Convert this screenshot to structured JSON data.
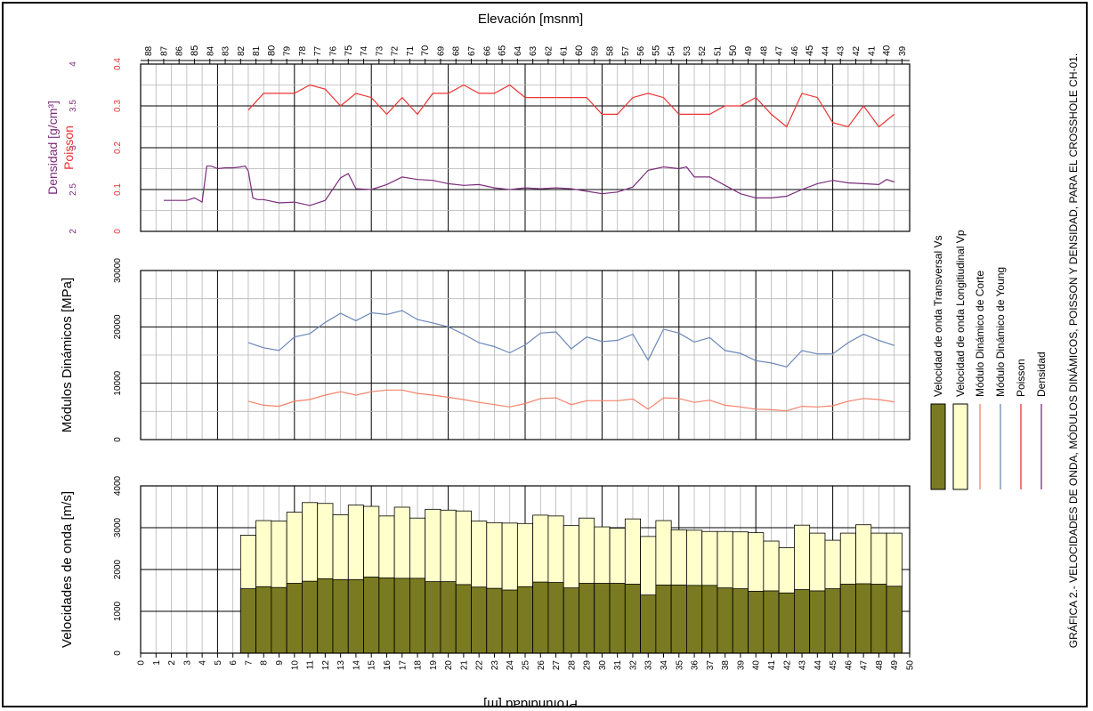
{
  "title_top": "Elevación [msnm]",
  "xlabel_bottom": "Profundidad [m]",
  "caption": "GRÁFICA 2.- VELOCIDADES DE ONDA, MÓDULOS DINÁMICOS, POISSON Y DENSIDAD, PARA EL CROSSHOLE CH-01.",
  "colors": {
    "vs_fill": "#7a7a22",
    "vp_fill": "#ffffcc",
    "corte": "#f4826a",
    "young": "#6b87b8",
    "poisson": "#ee3333",
    "densidad": "#7b2d7b",
    "density_axis": "#7b2d7b",
    "poisson_axis": "#ee3333"
  },
  "legend": {
    "vs": "Velocidad de onda Transversal Vs",
    "vp": "Velocidad de onda Longitiudinal Vp",
    "corte": "Módulo Dinámico de Corte",
    "young": "Módulo Dinámico de Young",
    "poisson": "Poisson",
    "densidad": "Densidad"
  },
  "chart_data": [
    {
      "type": "line",
      "panel": "poisson_density",
      "ylabel_density": "Densidad [g/cm³]",
      "ylabel_poisson": "Poisson",
      "density_ticks": [
        "2",
        "2.5",
        "3",
        "3.5",
        "4"
      ],
      "poisson_ticks": [
        "0",
        "0.1",
        "0.2",
        "0.3",
        "0.4"
      ],
      "ylim_density": [
        2,
        4
      ],
      "ylim_poisson": [
        0,
        0.4
      ],
      "xlim": [
        0,
        50
      ],
      "elevation_ticks": [
        "88",
        "87",
        "86",
        "85",
        "84",
        "83",
        "82",
        "81",
        "80",
        "79",
        "78",
        "77",
        "76",
        "75",
        "74",
        "73",
        "72",
        "71",
        "70",
        "69",
        "68",
        "67",
        "66",
        "65",
        "64",
        "63",
        "62",
        "61",
        "60",
        "59",
        "58",
        "57",
        "56",
        "55",
        "54",
        "53",
        "52",
        "51",
        "50",
        "49",
        "48",
        "47",
        "46",
        "45",
        "44",
        "43",
        "42",
        "41",
        "40",
        "39"
      ],
      "series": [
        {
          "name": "Poisson",
          "x": [
            7,
            8,
            9,
            10,
            11,
            12,
            13,
            14,
            15,
            16,
            17,
            18,
            19,
            20,
            21,
            22,
            23,
            24,
            25,
            26,
            27,
            28,
            29,
            30,
            31,
            32,
            33,
            34,
            35,
            36,
            37,
            38,
            39,
            40,
            41,
            42,
            43,
            44,
            45,
            46,
            47,
            48,
            49
          ],
          "values": [
            0.29,
            0.33,
            0.33,
            0.33,
            0.35,
            0.34,
            0.3,
            0.33,
            0.32,
            0.28,
            0.32,
            0.28,
            0.33,
            0.33,
            0.35,
            0.33,
            0.33,
            0.35,
            0.32,
            0.32,
            0.32,
            0.32,
            0.32,
            0.28,
            0.28,
            0.32,
            0.33,
            0.32,
            0.28,
            0.28,
            0.28,
            0.3,
            0.3,
            0.32,
            0.28,
            0.25,
            0.33,
            0.32,
            0.26,
            0.25,
            0.3,
            0.25,
            0.28
          ]
        },
        {
          "name": "Densidad",
          "x": [
            1.5,
            2,
            3,
            3.5,
            4,
            4.3,
            4.6,
            5,
            5.5,
            6,
            6.5,
            6.8,
            7,
            7.3,
            7.6,
            8,
            9,
            10,
            11,
            12,
            13,
            13.5,
            14,
            15,
            16,
            17,
            18,
            19,
            20,
            21,
            22,
            23,
            24,
            25,
            26,
            27,
            28,
            29,
            30,
            31,
            32,
            33,
            33.5,
            34,
            35,
            35.5,
            36,
            37,
            38,
            39,
            40,
            41,
            42,
            43,
            44,
            45,
            46,
            47,
            48,
            48.5,
            49
          ],
          "values": [
            2.37,
            2.37,
            2.37,
            2.4,
            2.35,
            2.78,
            2.78,
            2.75,
            2.76,
            2.76,
            2.77,
            2.78,
            2.72,
            2.4,
            2.38,
            2.38,
            2.34,
            2.35,
            2.31,
            2.37,
            2.64,
            2.69,
            2.51,
            2.5,
            2.56,
            2.65,
            2.62,
            2.61,
            2.57,
            2.55,
            2.56,
            2.52,
            2.5,
            2.52,
            2.51,
            2.52,
            2.51,
            2.48,
            2.45,
            2.47,
            2.53,
            2.73,
            2.75,
            2.77,
            2.75,
            2.77,
            2.65,
            2.65,
            2.55,
            2.45,
            2.4,
            2.4,
            2.42,
            2.5,
            2.57,
            2.61,
            2.58,
            2.57,
            2.56,
            2.62,
            2.59
          ]
        }
      ]
    },
    {
      "type": "line",
      "panel": "modulos",
      "ylabel": "Módulos Dinámicos [MPa]",
      "yticks": [
        "0",
        "10000",
        "20000",
        "30000"
      ],
      "ylim": [
        0,
        30000
      ],
      "xlim": [
        0,
        50
      ],
      "x": [
        7,
        8,
        9,
        10,
        11,
        12,
        13,
        14,
        15,
        16,
        17,
        18,
        19,
        20,
        21,
        22,
        23,
        24,
        25,
        26,
        27,
        28,
        29,
        30,
        31,
        32,
        33,
        34,
        35,
        36,
        37,
        38,
        39,
        40,
        41,
        42,
        43,
        44,
        45,
        46,
        47,
        48,
        49
      ],
      "series": [
        {
          "name": "Módulo Dinámico de Young",
          "values": [
            17200,
            16300,
            15800,
            18200,
            18800,
            20800,
            22400,
            21100,
            22500,
            22200,
            22900,
            21300,
            20700,
            20000,
            18700,
            17200,
            16500,
            15400,
            16800,
            18900,
            19100,
            16100,
            18200,
            17400,
            17600,
            18700,
            14100,
            19600,
            18900,
            17300,
            18100,
            15800,
            15300,
            14000,
            13600,
            12900,
            15800,
            15200,
            15200,
            17200,
            18700,
            17600,
            16700
          ]
        },
        {
          "name": "Módulo Dinámico de Corte",
          "values": [
            6800,
            6100,
            5900,
            6800,
            7100,
            7900,
            8500,
            7900,
            8500,
            8800,
            8800,
            8200,
            7900,
            7500,
            7100,
            6600,
            6200,
            5800,
            6400,
            7300,
            7400,
            6200,
            6900,
            6900,
            6900,
            7200,
            5400,
            7400,
            7300,
            6600,
            7000,
            6100,
            5800,
            5400,
            5300,
            5100,
            5900,
            5800,
            6000,
            6800,
            7300,
            7100,
            6700
          ]
        }
      ]
    },
    {
      "type": "bar",
      "panel": "velocidades",
      "ylabel": "Velocidades de onda [m/s]",
      "yticks": [
        "0",
        "1000",
        "2000",
        "3000",
        "4000"
      ],
      "ylim": [
        0,
        4000
      ],
      "xlim": [
        0,
        50
      ],
      "xticks": [
        "0",
        "1",
        "2",
        "3",
        "4",
        "5",
        "6",
        "7",
        "8",
        "9",
        "10",
        "11",
        "12",
        "13",
        "14",
        "15",
        "16",
        "17",
        "18",
        "19",
        "20",
        "21",
        "22",
        "23",
        "24",
        "25",
        "26",
        "27",
        "28",
        "29",
        "30",
        "31",
        "32",
        "33",
        "34",
        "35",
        "36",
        "37",
        "38",
        "39",
        "40",
        "41",
        "42",
        "43",
        "44",
        "45",
        "46",
        "47",
        "48",
        "49",
        "50"
      ],
      "categories": [
        "7",
        "8",
        "9",
        "10",
        "11",
        "12",
        "13",
        "14",
        "15",
        "16",
        "17",
        "18",
        "19",
        "20",
        "21",
        "22",
        "23",
        "24",
        "25",
        "26",
        "27",
        "28",
        "29",
        "30",
        "31",
        "32",
        "33",
        "34",
        "35",
        "36",
        "37",
        "38",
        "39",
        "40",
        "41",
        "42",
        "43",
        "44",
        "45",
        "46",
        "47",
        "48",
        "49"
      ],
      "series": [
        {
          "name": "Velocidad de onda Longitiudinal Vp",
          "values": [
            2820,
            3170,
            3160,
            3370,
            3600,
            3580,
            3310,
            3540,
            3510,
            3280,
            3490,
            3230,
            3440,
            3420,
            3400,
            3160,
            3120,
            3110,
            3100,
            3300,
            3280,
            3050,
            3230,
            3020,
            2990,
            3210,
            2790,
            3170,
            2950,
            2940,
            2910,
            2910,
            2900,
            2880,
            2680,
            2520,
            3060,
            2870,
            2700,
            2870,
            3070,
            2870,
            2870
          ]
        },
        {
          "name": "Velocidad de onda Transversal Vs",
          "values": [
            1540,
            1590,
            1570,
            1670,
            1720,
            1780,
            1760,
            1760,
            1820,
            1800,
            1790,
            1790,
            1710,
            1710,
            1640,
            1580,
            1550,
            1510,
            1590,
            1700,
            1690,
            1560,
            1670,
            1670,
            1670,
            1650,
            1390,
            1630,
            1630,
            1620,
            1620,
            1560,
            1540,
            1480,
            1490,
            1440,
            1520,
            1490,
            1540,
            1650,
            1660,
            1650,
            1600
          ]
        }
      ]
    }
  ]
}
